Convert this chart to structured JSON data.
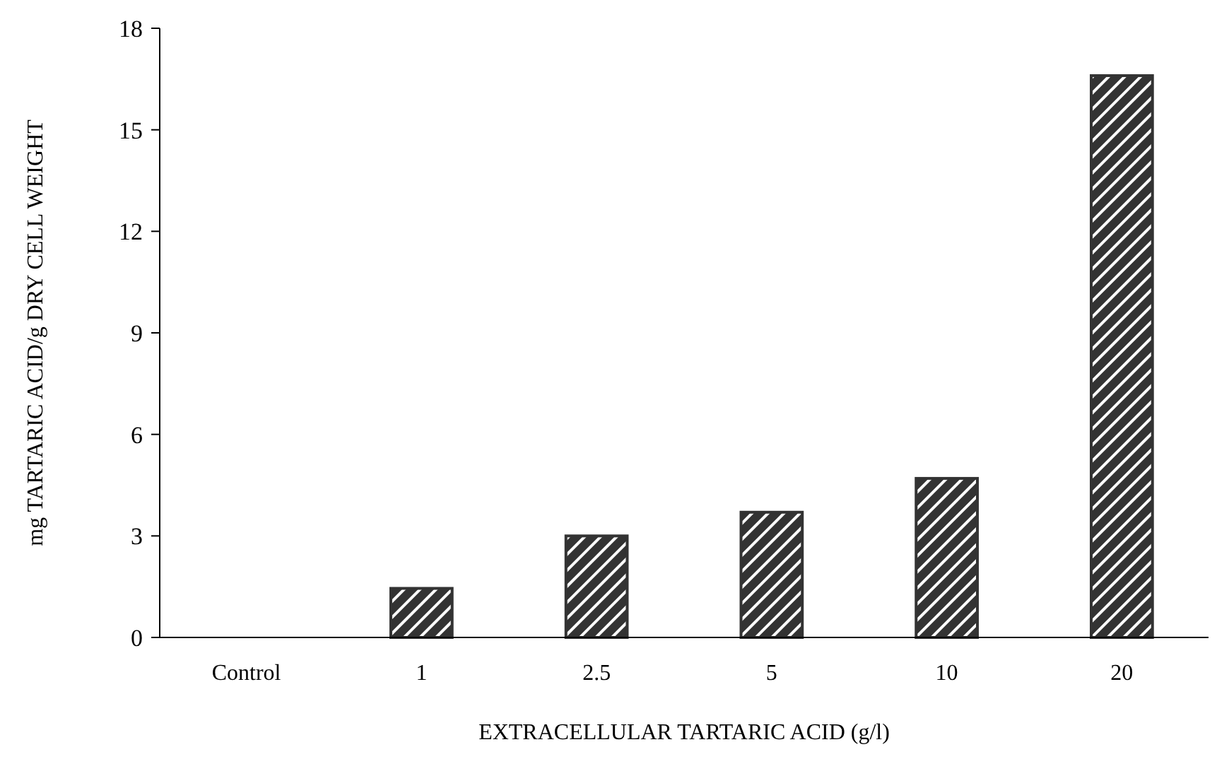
{
  "chart_data": {
    "type": "bar",
    "xlabel": "EXTRACELLULAR TARTARIC ACID (g/l)",
    "ylabel": "mg TARTARIC ACID/g DRY CELL WEIGHT",
    "categories": [
      "Control",
      "1",
      "2.5",
      "5",
      "10",
      "20"
    ],
    "values": [
      0,
      1.45,
      3.0,
      3.7,
      4.7,
      16.6
    ],
    "color": "#333333",
    "ylim": [
      0,
      18
    ],
    "yticks": [
      0,
      3,
      6,
      9,
      12,
      15,
      18
    ],
    "grid": false
  }
}
